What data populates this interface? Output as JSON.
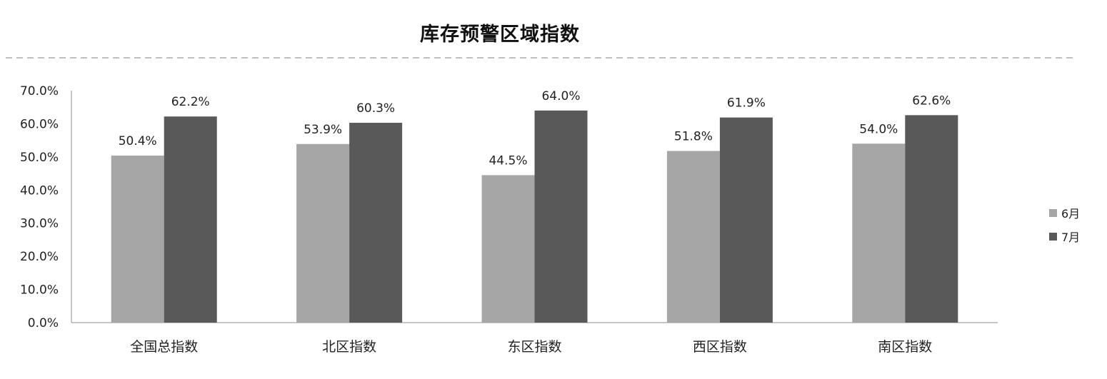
{
  "chart_data": {
    "type": "bar",
    "title": "库存预警区域指数",
    "categories": [
      "全国总指数",
      "北区指数",
      "东区指数",
      "西区指数",
      "南区指数"
    ],
    "series": [
      {
        "name": "6月",
        "color": "#a6a6a6",
        "values": [
          50.4,
          53.9,
          44.5,
          51.8,
          54.0
        ]
      },
      {
        "name": "7月",
        "color": "#595959",
        "values": [
          62.2,
          60.3,
          64.0,
          61.9,
          62.6
        ]
      }
    ],
    "ylim": [
      0,
      70
    ],
    "yticks": [
      0,
      10,
      20,
      30,
      40,
      50,
      60,
      70
    ],
    "ytick_labels": [
      "0.0%",
      "10.0%",
      "20.0%",
      "30.0%",
      "40.0%",
      "50.0%",
      "60.0%",
      "70.0%"
    ],
    "value_suffix": "%",
    "xlabel": "",
    "ylabel": "",
    "grid": false,
    "legend_position": "right"
  }
}
